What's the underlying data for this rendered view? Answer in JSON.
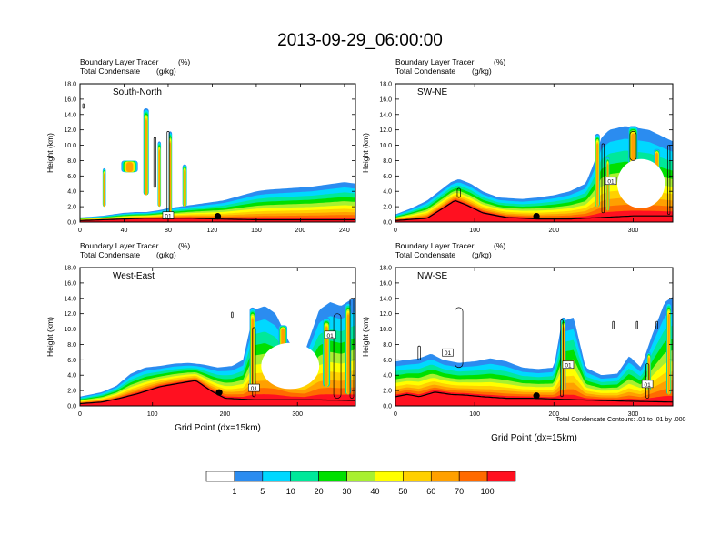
{
  "title": "2013-09-29_06:00:00",
  "colors": {
    "levels": [
      "#ffffff",
      "#2b8cf0",
      "#00d8ff",
      "#00e89a",
      "#00e000",
      "#a8f030",
      "#ffff00",
      "#ffd000",
      "#ffa000",
      "#ff6a00",
      "#ff1020"
    ],
    "frame": "#000000",
    "contour": "#000000",
    "terrain": "#000000"
  },
  "colorbar": {
    "labels": [
      "1",
      "5",
      "10",
      "20",
      "30",
      "40",
      "50",
      "60",
      "70",
      "100"
    ]
  },
  "footnote": "Total Condensate Contours: .01 to .01 by .000",
  "chart_data": [
    {
      "type": "heatmap",
      "label_left": "Boundary Layer Tracer",
      "label_right": "(%)",
      "label2_left": "Total Condensate",
      "label2_right": "(g/kg)",
      "inner_label": "South-North",
      "ylabel": "Height (km)",
      "xlabel": "",
      "xlim": [
        0,
        250
      ],
      "ylim": [
        0,
        18
      ],
      "xticks": [
        0,
        40,
        80,
        120,
        160,
        200,
        240
      ],
      "yticks": [
        0,
        2,
        4,
        6,
        8,
        10,
        12,
        14,
        16,
        18
      ],
      "marker_x": 125,
      "contour_labels": [
        {
          "text": "01",
          "x": 80,
          "y": 0.8
        }
      ],
      "terrain": [
        [
          0,
          0.2
        ],
        [
          20,
          0.3
        ],
        [
          40,
          0.4
        ],
        [
          60,
          0.5
        ],
        [
          80,
          0.5
        ],
        [
          100,
          0.5
        ],
        [
          125,
          0.4
        ],
        [
          160,
          0.3
        ],
        [
          200,
          0.3
        ],
        [
          250,
          0.3
        ]
      ],
      "top": [
        [
          0,
          0.6
        ],
        [
          10,
          0.7
        ],
        [
          20,
          0.8
        ],
        [
          30,
          1.0
        ],
        [
          40,
          1.2
        ],
        [
          50,
          1.3
        ],
        [
          60,
          1.3
        ],
        [
          70,
          1.5
        ],
        [
          80,
          1.8
        ],
        [
          90,
          2.0
        ],
        [
          100,
          2.2
        ],
        [
          110,
          2.4
        ],
        [
          120,
          2.6
        ],
        [
          130,
          2.8
        ],
        [
          140,
          3.2
        ],
        [
          150,
          3.6
        ],
        [
          160,
          4.0
        ],
        [
          170,
          4.2
        ],
        [
          180,
          4.3
        ],
        [
          190,
          4.4
        ],
        [
          200,
          4.5
        ],
        [
          210,
          4.6
        ],
        [
          220,
          4.8
        ],
        [
          230,
          5.0
        ],
        [
          240,
          5.2
        ],
        [
          250,
          5.0
        ]
      ],
      "plumes": [
        {
          "x": 22,
          "base": 2.0,
          "top": 7.0,
          "width": 3
        },
        {
          "x": 45,
          "base": 6.5,
          "top": 8.0,
          "width": 15
        },
        {
          "x": 60,
          "base": 3.5,
          "top": 14.8,
          "width": 5
        },
        {
          "x": 72,
          "base": 2.0,
          "top": 10.5,
          "width": 3
        },
        {
          "x": 82,
          "base": 1.0,
          "top": 11.8,
          "width": 3
        },
        {
          "x": 95,
          "base": 2.0,
          "top": 7.5,
          "width": 4
        }
      ],
      "contours": [
        {
          "x": 80,
          "base": 0.6,
          "top": 11.8,
          "width": 2
        },
        {
          "x": 68,
          "base": 4.5,
          "top": 11.0,
          "width": 2
        },
        {
          "x": 3,
          "base": 14.8,
          "top": 15.4,
          "width": 1
        }
      ]
    },
    {
      "type": "heatmap",
      "label_left": "Boundary Layer Tracer",
      "label_right": "(%)",
      "label2_left": "Total Condensate",
      "label2_right": "(g/kg)",
      "inner_label": "SW-NE",
      "ylabel": "Height (km)",
      "xlabel": "",
      "xlim": [
        0,
        350
      ],
      "ylim": [
        0,
        18
      ],
      "xticks": [
        0,
        100,
        200,
        300
      ],
      "yticks": [
        0,
        2,
        4,
        6,
        8,
        10,
        12,
        14,
        16,
        18
      ],
      "marker_x": 178,
      "contour_labels": [
        {
          "text": "01",
          "x": 272,
          "y": 5.3
        }
      ],
      "terrain": [
        [
          0,
          0.2
        ],
        [
          40,
          0.5
        ],
        [
          60,
          1.8
        ],
        [
          75,
          2.8
        ],
        [
          90,
          2.2
        ],
        [
          110,
          1.2
        ],
        [
          140,
          0.6
        ],
        [
          180,
          0.4
        ],
        [
          220,
          0.4
        ],
        [
          260,
          0.6
        ],
        [
          300,
          0.8
        ],
        [
          350,
          0.8
        ]
      ],
      "top": [
        [
          0,
          1.0
        ],
        [
          20,
          1.8
        ],
        [
          40,
          2.8
        ],
        [
          55,
          4.0
        ],
        [
          70,
          5.2
        ],
        [
          80,
          5.6
        ],
        [
          95,
          5.0
        ],
        [
          110,
          4.0
        ],
        [
          130,
          3.2
        ],
        [
          160,
          3.0
        ],
        [
          180,
          3.2
        ],
        [
          200,
          3.5
        ],
        [
          220,
          4.0
        ],
        [
          240,
          5.0
        ],
        [
          250,
          7.5
        ],
        [
          260,
          11.0
        ],
        [
          270,
          12.0
        ],
        [
          290,
          12.5
        ],
        [
          320,
          12.0
        ],
        [
          340,
          11.0
        ],
        [
          350,
          10.5
        ]
      ],
      "plumes": [
        {
          "x": 255,
          "base": 2.0,
          "top": 11.5,
          "width": 6
        },
        {
          "x": 268,
          "base": 1.5,
          "top": 8.5,
          "width": 4
        },
        {
          "x": 300,
          "base": 5.0,
          "top": 12.5,
          "width": 12
        },
        {
          "x": 330,
          "base": 6.0,
          "top": 9.5,
          "width": 8
        }
      ],
      "holes": [
        {
          "cx": 310,
          "cy": 5.0,
          "rx": 30,
          "ry": 3.2
        }
      ],
      "contours": [
        {
          "x": 262,
          "base": 1.2,
          "top": 10.2,
          "width": 3
        },
        {
          "x": 300,
          "base": 8.0,
          "top": 11.8,
          "width": 8
        },
        {
          "x": 80,
          "base": 3.2,
          "top": 4.4,
          "width": 4
        },
        {
          "x": 345,
          "base": 1.0,
          "top": 10.0,
          "width": 3
        }
      ]
    },
    {
      "type": "heatmap",
      "label_left": "Boundary Layer Tracer",
      "label_right": "(%)",
      "label2_left": "Total Condensate",
      "label2_right": "(g/kg)",
      "inner_label": "West-East",
      "ylabel": "Height (km)",
      "xlabel": "Grid Point (dx=15km)",
      "xlim": [
        0,
        380
      ],
      "ylim": [
        0,
        18
      ],
      "xticks": [
        0,
        100,
        200,
        300
      ],
      "yticks": [
        0,
        2,
        4,
        6,
        8,
        10,
        12,
        14,
        16,
        18
      ],
      "marker_x": 192,
      "contour_labels": [
        {
          "text": "01",
          "x": 240,
          "y": 2.3
        },
        {
          "text": "01",
          "x": 345,
          "y": 9.2
        }
      ],
      "terrain": [
        [
          0,
          0.3
        ],
        [
          30,
          0.5
        ],
        [
          55,
          1.0
        ],
        [
          80,
          1.6
        ],
        [
          110,
          2.5
        ],
        [
          140,
          3.0
        ],
        [
          160,
          3.3
        ],
        [
          180,
          2.0
        ],
        [
          200,
          1.0
        ],
        [
          240,
          0.8
        ],
        [
          280,
          0.8
        ],
        [
          320,
          0.8
        ],
        [
          380,
          0.7
        ]
      ],
      "top": [
        [
          0,
          1.2
        ],
        [
          30,
          1.8
        ],
        [
          50,
          2.6
        ],
        [
          70,
          4.2
        ],
        [
          90,
          5.0
        ],
        [
          110,
          5.2
        ],
        [
          130,
          5.5
        ],
        [
          150,
          5.6
        ],
        [
          170,
          5.4
        ],
        [
          190,
          5.0
        ],
        [
          210,
          5.2
        ],
        [
          225,
          6.0
        ],
        [
          240,
          12.5
        ],
        [
          255,
          13.0
        ],
        [
          270,
          12.0
        ],
        [
          290,
          8.0
        ],
        [
          310,
          7.0
        ],
        [
          330,
          12.5
        ],
        [
          345,
          13.5
        ],
        [
          360,
          13.0
        ],
        [
          380,
          14.2
        ]
      ],
      "plumes": [
        {
          "x": 238,
          "base": 2.0,
          "top": 12.8,
          "width": 8
        },
        {
          "x": 280,
          "base": 7.5,
          "top": 10.5,
          "width": 12
        },
        {
          "x": 340,
          "base": 2.5,
          "top": 11.5,
          "width": 10
        },
        {
          "x": 370,
          "base": 1.5,
          "top": 13.5,
          "width": 8
        }
      ],
      "holes": [
        {
          "cx": 290,
          "cy": 5.2,
          "rx": 40,
          "ry": 3.0
        }
      ],
      "contours": [
        {
          "x": 240,
          "base": 1.2,
          "top": 10.2,
          "width": 4
        },
        {
          "x": 210,
          "base": 11.5,
          "top": 12.2,
          "width": 2
        },
        {
          "x": 355,
          "base": 1.0,
          "top": 12.0,
          "width": 10
        },
        {
          "x": 375,
          "base": 1.0,
          "top": 14.0,
          "width": 5
        }
      ]
    },
    {
      "type": "heatmap",
      "label_left": "Boundary Layer Tracer",
      "label_right": "(%)",
      "label2_left": "Total Condensate",
      "label2_right": "(g/kg)",
      "inner_label": "NW-SE",
      "ylabel": "Height (km)",
      "xlabel": "Grid Point (dx=15km)",
      "xlim": [
        0,
        350
      ],
      "ylim": [
        0,
        18
      ],
      "xticks": [
        0,
        100,
        200,
        300
      ],
      "yticks": [
        0,
        2,
        4,
        6,
        8,
        10,
        12,
        14,
        16,
        18
      ],
      "marker_x": 178,
      "contour_labels": [
        {
          "text": "01",
          "x": 66,
          "y": 6.9
        },
        {
          "text": "01",
          "x": 218,
          "y": 5.3
        },
        {
          "text": "01",
          "x": 318,
          "y": 2.8
        }
      ],
      "terrain": [
        [
          0,
          1.2
        ],
        [
          15,
          1.5
        ],
        [
          30,
          1.2
        ],
        [
          50,
          1.8
        ],
        [
          70,
          1.5
        ],
        [
          90,
          1.4
        ],
        [
          110,
          1.2
        ],
        [
          140,
          1.0
        ],
        [
          170,
          1.0
        ],
        [
          200,
          0.9
        ],
        [
          230,
          0.8
        ],
        [
          260,
          0.7
        ],
        [
          300,
          0.6
        ],
        [
          350,
          0.5
        ]
      ],
      "top": [
        [
          0,
          5.8
        ],
        [
          15,
          6.0
        ],
        [
          30,
          6.2
        ],
        [
          45,
          6.8
        ],
        [
          60,
          6.0
        ],
        [
          80,
          5.6
        ],
        [
          100,
          5.8
        ],
        [
          120,
          6.2
        ],
        [
          140,
          5.8
        ],
        [
          160,
          5.0
        ],
        [
          180,
          4.8
        ],
        [
          200,
          5.0
        ],
        [
          210,
          11.0
        ],
        [
          225,
          11.5
        ],
        [
          240,
          5.0
        ],
        [
          260,
          4.0
        ],
        [
          280,
          4.2
        ],
        [
          295,
          6.5
        ],
        [
          310,
          5.0
        ],
        [
          325,
          9.5
        ],
        [
          340,
          13.5
        ],
        [
          350,
          14.2
        ]
      ],
      "plumes": [
        {
          "x": 212,
          "base": 2.0,
          "top": 11.5,
          "width": 6
        },
        {
          "x": 320,
          "base": 2.0,
          "top": 7.0,
          "width": 5
        },
        {
          "x": 345,
          "base": 1.5,
          "top": 13.5,
          "width": 6
        }
      ],
      "contours": [
        {
          "x": 80,
          "base": 5.0,
          "top": 12.8,
          "width": 10
        },
        {
          "x": 210,
          "base": 1.2,
          "top": 11.2,
          "width": 3
        },
        {
          "x": 318,
          "base": 1.0,
          "top": 5.5,
          "width": 4
        },
        {
          "x": 275,
          "base": 10.0,
          "top": 11.0,
          "width": 2
        },
        {
          "x": 305,
          "base": 10.0,
          "top": 11.0,
          "width": 2
        },
        {
          "x": 330,
          "base": 10.0,
          "top": 11.0,
          "width": 2
        },
        {
          "x": 30,
          "base": 6.0,
          "top": 7.8,
          "width": 3
        }
      ]
    }
  ]
}
